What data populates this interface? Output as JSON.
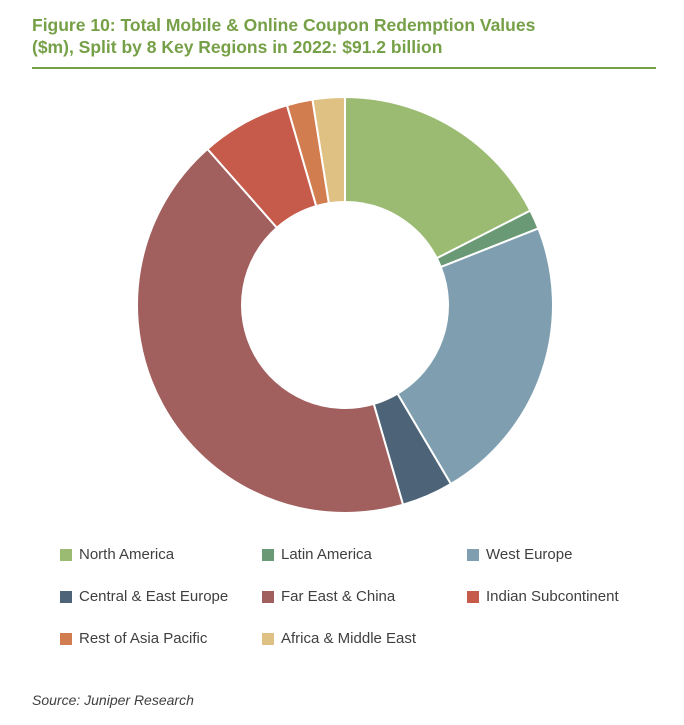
{
  "chart_data": {
    "type": "pie",
    "title": "Figure 10: Total Mobile & Online Coupon Redemption Values\n($m), Split by 8 Key Regions in 2022: $91.2 billion",
    "donut": true,
    "categories": [
      "North America",
      "Latin America",
      "West Europe",
      "Central & East Europe",
      "Far East & China",
      "Indian Subcontinent",
      "Rest of Asia Pacific",
      "Africa & Middle East"
    ],
    "values": [
      17.5,
      1.5,
      22.5,
      4.0,
      43.0,
      7.0,
      2.0,
      2.5
    ],
    "colors": [
      "#9bbb72",
      "#6a9a75",
      "#7f9fb1",
      "#4d6478",
      "#a15f5e",
      "#c65b4b",
      "#d27d50",
      "#e0c184"
    ],
    "legend_position": "bottom"
  },
  "source": "Source: Juniper Research"
}
